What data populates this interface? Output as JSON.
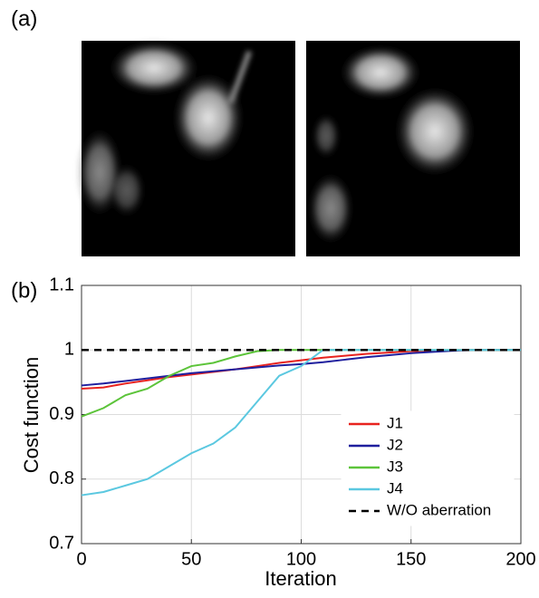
{
  "panel_labels": [
    "(a)",
    "(b)"
  ],
  "chart_data": {
    "type": "line",
    "xlabel": "Iteration",
    "ylabel": "Cost function",
    "x": [
      0,
      10,
      20,
      30,
      40,
      50,
      60,
      70,
      80,
      90,
      100,
      110,
      120,
      130,
      140,
      150,
      160,
      170,
      180,
      190,
      200
    ],
    "series": [
      {
        "name": "J1",
        "color": "#e8231f",
        "values": [
          0.94,
          0.942,
          0.948,
          0.953,
          0.958,
          0.962,
          0.966,
          0.97,
          0.975,
          0.98,
          0.984,
          0.988,
          0.991,
          0.994,
          0.996,
          0.998,
          0.999,
          1.0,
          1.0,
          1.0,
          1.0
        ]
      },
      {
        "name": "J2",
        "color": "#1f1f9e",
        "values": [
          0.945,
          0.948,
          0.952,
          0.956,
          0.96,
          0.964,
          0.967,
          0.97,
          0.973,
          0.976,
          0.978,
          0.981,
          0.985,
          0.989,
          0.992,
          0.995,
          0.997,
          0.999,
          1.0,
          1.0,
          1.0
        ]
      },
      {
        "name": "J3",
        "color": "#5cc43a",
        "values": [
          0.897,
          0.91,
          0.93,
          0.94,
          0.96,
          0.975,
          0.98,
          0.99,
          0.998,
          1.0,
          1.0,
          1.0,
          1.0,
          1.0,
          1.0,
          1.0,
          1.0,
          1.0,
          1.0,
          1.0,
          1.0
        ]
      },
      {
        "name": "J4",
        "color": "#5bc8e0",
        "values": [
          0.775,
          0.78,
          0.79,
          0.8,
          0.82,
          0.84,
          0.855,
          0.88,
          0.92,
          0.96,
          0.975,
          1.0,
          1.0,
          1.0,
          1.0,
          1.0,
          1.0,
          1.0,
          1.0,
          1.0,
          1.0
        ]
      },
      {
        "name": "W/O aberration",
        "color": "#000000",
        "dashed": true,
        "values": [
          1,
          1,
          1,
          1,
          1,
          1,
          1,
          1,
          1,
          1,
          1,
          1,
          1,
          1,
          1,
          1,
          1,
          1,
          1,
          1,
          1
        ]
      }
    ],
    "xlim": [
      0,
      200
    ],
    "xticks": [
      0,
      50,
      100,
      150,
      200
    ],
    "ylim": [
      0.7,
      1.1
    ],
    "yticks": [
      0.7,
      0.8,
      0.9,
      1,
      1.1
    ],
    "grid": true,
    "legend": "lower right"
  }
}
